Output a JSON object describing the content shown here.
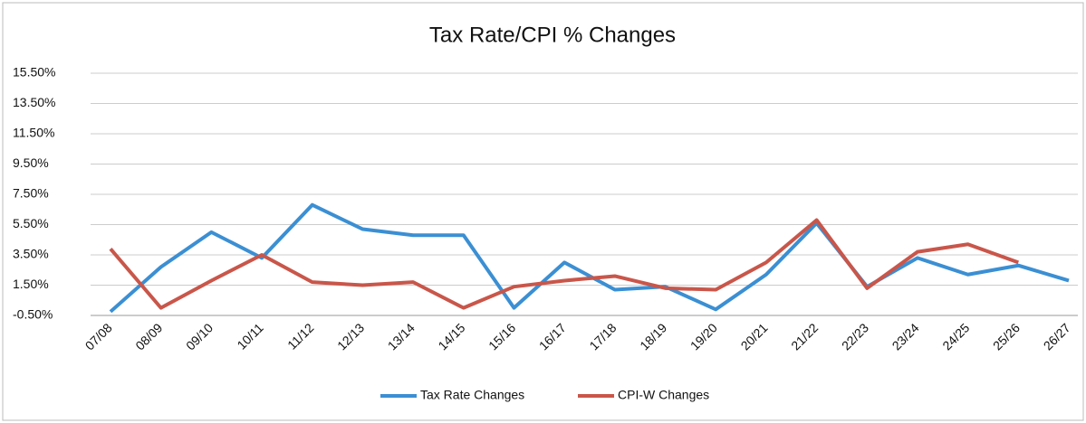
{
  "chart_data": {
    "type": "line",
    "title": "Tax Rate/CPI % Changes",
    "categories": [
      "07/08",
      "08/09",
      "09/10",
      "10/11",
      "11/12",
      "12/13",
      "13/14",
      "14/15",
      "15/16",
      "16/17",
      "17/18",
      "18/19",
      "19/20",
      "20/21",
      "21/22",
      "22/23",
      "23/24",
      "24/25",
      "25/26",
      "26/27"
    ],
    "series": [
      {
        "name": "Tax Rate Changes",
        "color": "#3b8fd3",
        "values": [
          -0.25,
          2.7,
          5.0,
          3.3,
          6.8,
          5.2,
          4.8,
          4.8,
          0,
          3.0,
          1.2,
          1.4,
          -0.1,
          2.2,
          5.6,
          1.4,
          3.3,
          2.2,
          2.8,
          1.8
        ]
      },
      {
        "name": "CPI-W Changes",
        "color": "#c9564a",
        "values": [
          3.9,
          0,
          1.8,
          3.5,
          1.7,
          1.5,
          1.7,
          0,
          1.4,
          1.8,
          2.1,
          1.3,
          1.2,
          3.0,
          5.8,
          1.3,
          3.7,
          4.2,
          3.0,
          null
        ]
      }
    ],
    "ylim": [
      -0.5,
      15.5
    ],
    "yticks": [
      {
        "value": -0.5,
        "label": "-0.50%"
      },
      {
        "value": 1.5,
        "label": "1.50%"
      },
      {
        "value": 3.5,
        "label": "3.50%"
      },
      {
        "value": 5.5,
        "label": "5.50%"
      },
      {
        "value": 7.5,
        "label": "7.50%"
      },
      {
        "value": 9.5,
        "label": "9.50%"
      },
      {
        "value": 11.5,
        "label": "11.50%"
      },
      {
        "value": 13.5,
        "label": "13.50%"
      },
      {
        "value": 15.5,
        "label": "15.50%"
      }
    ],
    "grid": true,
    "legend": "bottom"
  }
}
